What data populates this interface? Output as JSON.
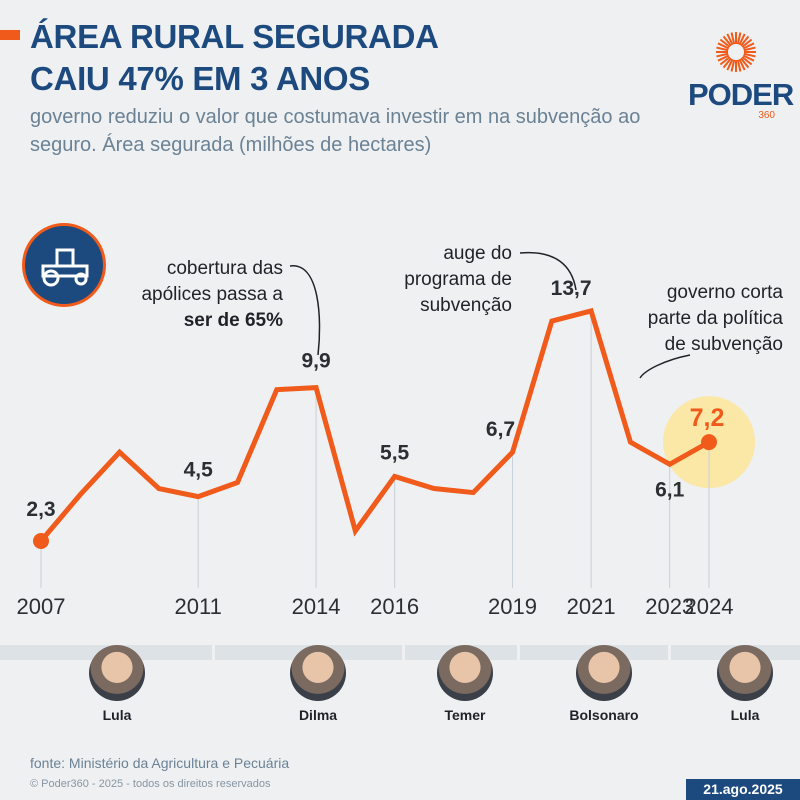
{
  "header": {
    "title_line1": "ÁREA RURAL SEGURADA",
    "title_line2": "CAIU 47% EM 3 ANOS",
    "subtitle": "governo reduziu o valor que costumava investir em na subvenção ao seguro. Área segurada (milhões de hectares)"
  },
  "logo": {
    "word": "PODER",
    "num": "360"
  },
  "colors": {
    "accent": "#f05a1a",
    "navy": "#1d4a7e",
    "highlight": "#fbe7a6"
  },
  "chart_data": {
    "type": "line",
    "title": "Área segurada (milhões de hectares)",
    "x": [
      2007,
      2008,
      2009,
      2010,
      2011,
      2012,
      2013,
      2014,
      2015,
      2016,
      2017,
      2018,
      2019,
      2020,
      2021,
      2022,
      2023,
      2024
    ],
    "values": [
      2.3,
      4.6,
      6.7,
      4.9,
      4.5,
      5.2,
      9.8,
      9.9,
      2.8,
      5.5,
      4.9,
      4.7,
      6.7,
      13.2,
      13.7,
      7.2,
      6.1,
      7.2
    ],
    "ylim": [
      0,
      15
    ],
    "x_tick_labels": [
      "2007",
      "2011",
      "2014",
      "2016",
      "2019",
      "2021",
      "2023",
      "2024"
    ],
    "data_labels": [
      {
        "year": 2007,
        "text": "2,3"
      },
      {
        "year": 2011,
        "text": "4,5"
      },
      {
        "year": 2014,
        "text": "9,9"
      },
      {
        "year": 2016,
        "text": "5,5"
      },
      {
        "year": 2019,
        "text": "6,7"
      },
      {
        "year": 2021,
        "text": "13,7"
      },
      {
        "year": 2023,
        "text": "6,1"
      },
      {
        "year": 2024,
        "text": "7,2"
      }
    ],
    "annotations": {
      "a2014": [
        "cobertura das",
        "apólices passa a",
        "ser de 65%"
      ],
      "a2021": [
        "auge do",
        "programa de",
        "subvenção"
      ],
      "a2023": [
        "governo corta",
        "parte da política",
        "de subvenção"
      ]
    }
  },
  "presidents": [
    "Lula",
    "Dilma",
    "Temer",
    "Bolsonaro",
    "Lula"
  ],
  "footer": {
    "source": "fonte: Ministério da Agricultura e Pecuária",
    "copyright": "© Poder360 - 2025 - todos os direitos reservados",
    "date": "21.ago.2025"
  }
}
